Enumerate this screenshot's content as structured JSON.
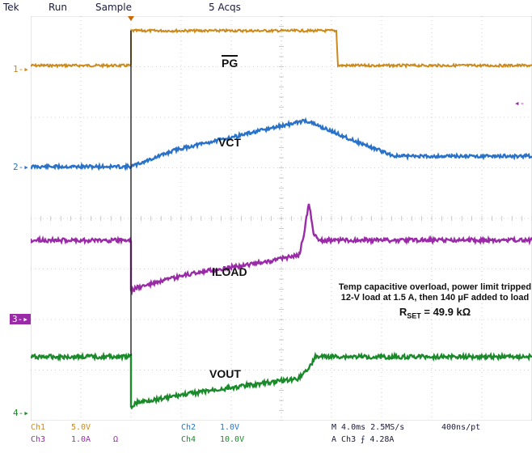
{
  "header": {
    "brand": "Tek",
    "run_state": "Run",
    "acq_mode": "Sample",
    "acq_count": "5 Acqs"
  },
  "channel_markers": [
    {
      "id": "1",
      "color": "#cc8a1a"
    },
    {
      "id": "2",
      "color": "#2a72c8"
    },
    {
      "id": "3",
      "color": "#9a2aa8"
    },
    {
      "id": "4",
      "color": "#1a8a2a"
    }
  ],
  "trace_labels": {
    "pg": "PG",
    "vct": "VCT",
    "iload": "ILOAD",
    "vout": "VOUT"
  },
  "annotation": {
    "line1": "Temp capacitive overload, power limit tripped",
    "line2": "12-V load at 1.5 A, then 140 μF added to load",
    "rset_label": "R",
    "rset_sub": "SET",
    "rset_value": " = 49.9 kΩ"
  },
  "status": {
    "ch1_name": "Ch1",
    "ch1_scale": "5.0V",
    "ch2_name": "Ch2",
    "ch2_scale": "1.0V",
    "ch3_name": "Ch3",
    "ch3_scale": "1.0A",
    "ch3_unit": "Ω",
    "ch4_name": "Ch4",
    "ch4_scale": "10.0V",
    "timebase": "M 4.0ms 2.5MS/s",
    "sample_interval": "400ns/pt",
    "trigger": "A Ch3 ⨍ 4.28A"
  },
  "colors": {
    "ch1": "#cc8a1a",
    "ch2": "#2a72c8",
    "ch3": "#9a2aa8",
    "ch4": "#1a8a2a",
    "grid": "#aaaaaa",
    "trigger_marker": "#cc6600"
  }
}
